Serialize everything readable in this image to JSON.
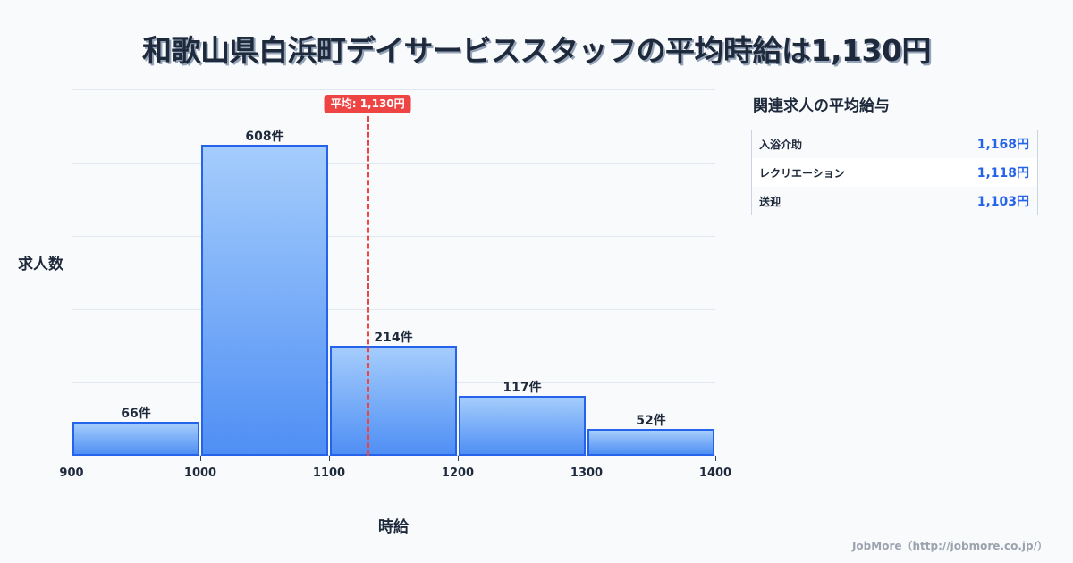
{
  "title": "和歌山県白浜町デイサービススタッフの平均時給は1,130円",
  "chart_data": {
    "type": "bar",
    "title": "和歌山県白浜町デイサービススタッフの平均時給は1,130円",
    "xlabel": "時給",
    "ylabel": "求人数",
    "bins": [
      [
        900,
        1000
      ],
      [
        1000,
        1100
      ],
      [
        1100,
        1200
      ],
      [
        1200,
        1300
      ],
      [
        1300,
        1400
      ]
    ],
    "categories": [
      "900-1000",
      "1000-1100",
      "1100-1200",
      "1200-1300",
      "1300-1400"
    ],
    "values": [
      66,
      608,
      214,
      117,
      52
    ],
    "value_labels": [
      "66件",
      "608件",
      "214件",
      "117件",
      "52件"
    ],
    "x_ticks": [
      "900",
      "1000",
      "1100",
      "1200",
      "1300",
      "1400"
    ],
    "xlim": [
      900,
      1400
    ],
    "ylim": [
      0,
      716
    ],
    "grid": true,
    "average": {
      "value": 1130,
      "label": "平均: 1,130円",
      "color": "#ef4444"
    },
    "bar_color": "#4f8ff4",
    "bar_border_color": "#2563eb"
  },
  "axis": {
    "y_label": "求人数",
    "x_label": "時給"
  },
  "side_panel": {
    "title": "関連求人の平均給与",
    "rows": [
      {
        "name": "入浴介助",
        "value": "1,168円"
      },
      {
        "name": "レクリエーション",
        "value": "1,118円"
      },
      {
        "name": "送迎",
        "value": "1,103円"
      }
    ]
  },
  "footer": "JobMore（http://jobmore.co.jp/）"
}
